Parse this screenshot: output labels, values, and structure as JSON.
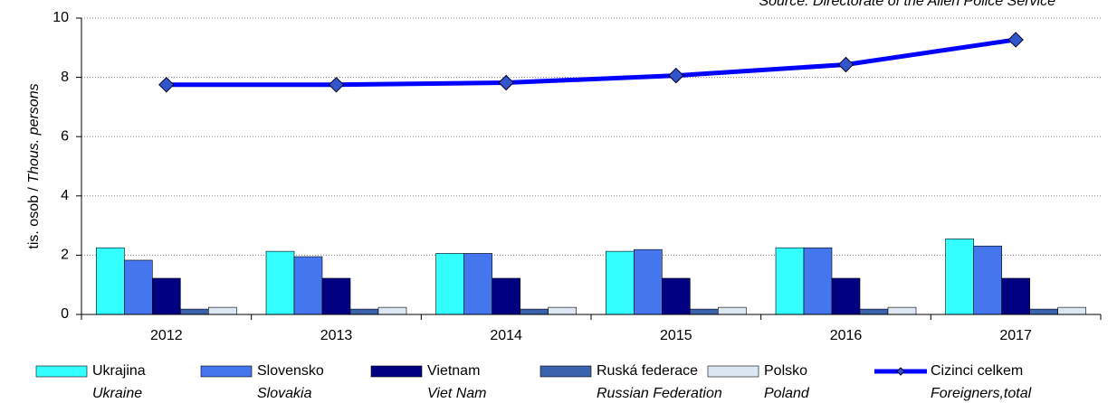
{
  "chart_data": {
    "type": "bar_line",
    "source": "Source: Directorate of the Alien Police Service",
    "y_label": "tis. osob / ",
    "y_label_en": "Thous. persons",
    "categories": [
      "2012",
      "2013",
      "2014",
      "2015",
      "2016",
      "2017"
    ],
    "series": [
      {
        "name": "Ukrajina",
        "name_en": "Ukraine",
        "type": "bar",
        "color": "#33ffff",
        "values": [
          2.25,
          2.13,
          2.06,
          2.13,
          2.25,
          2.55
        ]
      },
      {
        "name": "Slovensko",
        "name_en": "Slovakia",
        "type": "bar",
        "color": "#4477ee",
        "values": [
          1.83,
          1.95,
          2.06,
          2.19,
          2.25,
          2.31
        ]
      },
      {
        "name": "Vietnam",
        "name_en": "Viet Nam",
        "type": "bar",
        "color": "#000080",
        "values": [
          1.22,
          1.22,
          1.22,
          1.22,
          1.22,
          1.22
        ]
      },
      {
        "name": "Ruská federace",
        "name_en": "Russian Federation",
        "type": "bar",
        "color": "#3b62ad",
        "values": [
          0.18,
          0.18,
          0.18,
          0.18,
          0.18,
          0.18
        ]
      },
      {
        "name": "Polsko",
        "name_en": "Poland",
        "type": "bar",
        "color": "#dde7f3",
        "values": [
          0.24,
          0.24,
          0.24,
          0.24,
          0.24,
          0.24
        ]
      },
      {
        "name": "Cizinci celkem",
        "name_en": "Foreigners,total",
        "type": "line",
        "color": "#0000ff",
        "marker_color": "#3355cc",
        "values": [
          7.75,
          7.75,
          7.82,
          8.06,
          8.43,
          9.27
        ]
      }
    ],
    "ylim": [
      0,
      10
    ],
    "yticks": [
      0,
      2,
      4,
      6,
      8,
      10
    ],
    "grid": true
  }
}
